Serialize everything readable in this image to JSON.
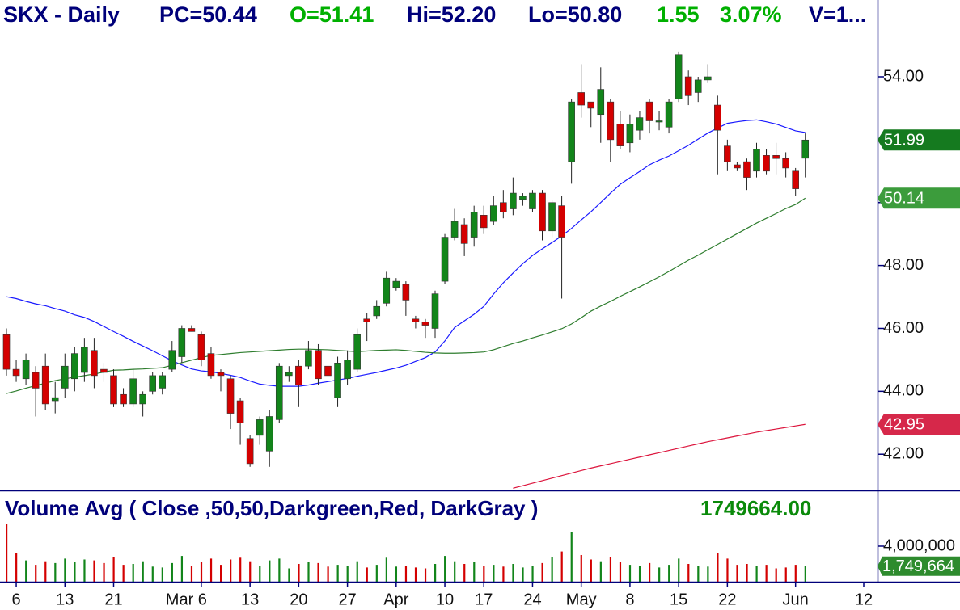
{
  "chart_data": {
    "type": "candlestick",
    "title": "SKX - Daily",
    "header": [
      "PC=50.44",
      "O=51.41",
      "Hi=52.20",
      "Lo=50.80",
      "1.55",
      "3.07%",
      "V=1..."
    ],
    "categories": [
      null,
      "6",
      null,
      null,
      null,
      null,
      "13",
      null,
      null,
      null,
      null,
      "21",
      null,
      null,
      null,
      null,
      null,
      null,
      null,
      null,
      "Mar 6",
      null,
      null,
      null,
      null,
      "13",
      null,
      null,
      null,
      null,
      "20",
      null,
      null,
      null,
      null,
      "27",
      null,
      null,
      null,
      null,
      "Apr",
      null,
      null,
      null,
      null,
      "10",
      null,
      null,
      null,
      "17",
      null,
      null,
      null,
      null,
      "24",
      null,
      null,
      null,
      null,
      "May",
      null,
      null,
      null,
      null,
      "8",
      null,
      null,
      null,
      null,
      "15",
      null,
      null,
      null,
      null,
      "22",
      null,
      null,
      null,
      null,
      null,
      null,
      "Jun",
      null,
      null,
      null,
      null,
      null,
      null,
      "12"
    ],
    "open": [
      45.8,
      44.7,
      44.4,
      44.6,
      44.8,
      43.7,
      44.1,
      44.4,
      44.6,
      45.3,
      44.7,
      44.5,
      43.9,
      43.6,
      43.6,
      44.0,
      44.1,
      44.7,
      45.1,
      46.0,
      45.8,
      45.2,
      44.6,
      44.4,
      43.7,
      42.5,
      42.6,
      42.1,
      43.1,
      44.5,
      44.8,
      44.8,
      45.3,
      44.8,
      43.8,
      44.4,
      44.7,
      46.3,
      46.4,
      46.8,
      47.3,
      47.4,
      46.3,
      46.2,
      46.0,
      47.5,
      48.9,
      49.3,
      48.9,
      49.6,
      49.4,
      50.0,
      49.8,
      50.1,
      49.8,
      50.3,
      49.1,
      49.9,
      51.3,
      53.5,
      53.2,
      52.8,
      53.2,
      52.5,
      51.9,
      52.3,
      53.2,
      52.6,
      52.4,
      53.3,
      54.0,
      53.5,
      53.9,
      53.1,
      51.8,
      51.2,
      51.3,
      51.0,
      51.5,
      51.5,
      51.4,
      51.0,
      51.41,
      null,
      null,
      null,
      null,
      null,
      null
    ],
    "high": [
      46.0,
      45.0,
      45.2,
      44.8,
      45.2,
      44.3,
      45.2,
      45.4,
      45.7,
      45.7,
      44.9,
      44.7,
      44.1,
      44.7,
      44.0,
      44.6,
      44.6,
      45.6,
      46.1,
      46.1,
      45.9,
      45.4,
      44.7,
      44.5,
      43.8,
      42.6,
      43.2,
      43.4,
      44.9,
      44.8,
      45.0,
      45.6,
      45.5,
      45.3,
      45.1,
      45.3,
      46.0,
      46.5,
      46.9,
      47.8,
      47.6,
      47.5,
      46.4,
      46.3,
      47.2,
      49.0,
      49.8,
      49.5,
      49.9,
      49.9,
      50.2,
      50.4,
      50.8,
      50.3,
      50.4,
      50.4,
      50.1,
      50.2,
      53.3,
      54.4,
      53.2,
      54.3,
      53.3,
      52.9,
      52.8,
      52.9,
      53.3,
      52.9,
      53.3,
      54.8,
      54.2,
      54.0,
      54.4,
      53.4,
      52.0,
      51.3,
      51.4,
      51.9,
      51.7,
      51.9,
      51.6,
      51.1,
      52.2,
      null,
      null,
      null,
      null,
      null,
      null
    ],
    "low": [
      44.5,
      44.3,
      44.2,
      43.2,
      43.4,
      43.3,
      43.8,
      44.0,
      44.3,
      44.1,
      44.3,
      43.5,
      43.5,
      43.5,
      43.2,
      43.9,
      43.9,
      44.6,
      44.9,
      45.9,
      44.8,
      44.4,
      44.0,
      42.8,
      42.3,
      41.6,
      42.3,
      41.6,
      43.0,
      44.3,
      43.5,
      44.7,
      44.2,
      44.0,
      43.5,
      44.2,
      44.6,
      45.6,
      46.3,
      46.7,
      47.2,
      46.4,
      46.0,
      45.7,
      45.7,
      47.4,
      48.8,
      48.3,
      48.6,
      49.0,
      49.3,
      49.5,
      49.6,
      49.9,
      49.7,
      48.8,
      48.9,
      46.95,
      50.6,
      52.7,
      52.4,
      51.9,
      51.3,
      51.7,
      51.6,
      52.0,
      52.2,
      52.3,
      52.2,
      53.2,
      53.1,
      53.2,
      53.8,
      50.9,
      51.0,
      51.0,
      50.4,
      50.8,
      50.9,
      50.9,
      50.8,
      50.2,
      50.8,
      null,
      null,
      null,
      null,
      null,
      null
    ],
    "close": [
      44.7,
      44.5,
      45.0,
      44.1,
      43.6,
      43.8,
      44.8,
      45.2,
      45.4,
      44.5,
      44.6,
      43.6,
      43.6,
      44.4,
      43.9,
      44.5,
      44.5,
      45.3,
      46.0,
      45.9,
      45.0,
      44.5,
      44.5,
      43.3,
      43.0,
      41.7,
      43.1,
      43.2,
      44.8,
      44.6,
      44.2,
      45.3,
      44.4,
      44.5,
      44.9,
      45.0,
      45.8,
      46.2,
      46.7,
      47.6,
      47.5,
      46.9,
      46.2,
      46.1,
      47.1,
      48.9,
      49.4,
      48.7,
      49.7,
      49.2,
      49.9,
      49.7,
      50.3,
      50.2,
      50.3,
      49.1,
      50.0,
      48.9,
      53.2,
      53.1,
      53.0,
      53.6,
      52.0,
      51.8,
      52.5,
      52.7,
      52.6,
      52.6,
      53.2,
      54.7,
      53.4,
      53.9,
      54.0,
      52.3,
      51.3,
      51.1,
      50.8,
      51.7,
      51.0,
      51.4,
      51.1,
      50.44,
      51.99,
      null,
      null,
      null,
      null,
      null,
      null
    ],
    "up_color": "#12851a",
    "down_color": "#d40000",
    "series": [
      {
        "color": "#1a1aff",
        "values": [
          47.01,
          46.95,
          46.86,
          46.78,
          46.72,
          46.63,
          46.55,
          46.43,
          46.35,
          46.22,
          46.06,
          45.9,
          45.75,
          45.59,
          45.44,
          45.29,
          45.13,
          44.97,
          44.84,
          44.71,
          44.65,
          44.62,
          44.57,
          44.51,
          44.44,
          44.33,
          44.23,
          44.19,
          44.16,
          44.16,
          44.16,
          44.2,
          44.26,
          44.31,
          44.36,
          44.41,
          44.48,
          44.54,
          44.6,
          44.67,
          44.74,
          44.83,
          44.95,
          45.07,
          45.25,
          45.6,
          46.03,
          46.24,
          46.45,
          46.7,
          47.09,
          47.45,
          47.76,
          48.06,
          48.32,
          48.53,
          48.73,
          48.94,
          49.18,
          49.45,
          49.71,
          50.0,
          50.3,
          50.58,
          50.79,
          50.99,
          51.2,
          51.35,
          51.48,
          51.65,
          51.82,
          52.02,
          52.21,
          52.37,
          52.52,
          52.57,
          52.61,
          52.63,
          52.57,
          52.5,
          52.39,
          52.28,
          52.23,
          null,
          null,
          null,
          null,
          null,
          null
        ]
      },
      {
        "color": "#2e7d2e",
        "values": [
          43.93,
          44.01,
          44.1,
          44.18,
          44.26,
          44.34,
          44.4,
          44.45,
          44.5,
          44.55,
          44.61,
          44.67,
          44.68,
          44.7,
          44.71,
          44.73,
          44.75,
          44.83,
          44.91,
          44.99,
          45.07,
          45.14,
          45.17,
          45.2,
          45.23,
          45.25,
          45.27,
          45.29,
          45.31,
          45.33,
          45.34,
          45.34,
          45.33,
          45.32,
          45.3,
          45.28,
          45.26,
          45.28,
          45.3,
          45.31,
          45.32,
          45.3,
          45.27,
          45.24,
          45.22,
          45.21,
          45.21,
          45.22,
          45.23,
          45.25,
          45.32,
          45.42,
          45.52,
          45.6,
          45.7,
          45.79,
          45.89,
          45.99,
          46.14,
          46.34,
          46.55,
          46.71,
          46.86,
          47.02,
          47.17,
          47.32,
          47.48,
          47.64,
          47.81,
          47.99,
          48.17,
          48.33,
          48.5,
          48.67,
          48.84,
          49.01,
          49.18,
          49.35,
          49.5,
          49.65,
          49.81,
          49.94,
          50.14,
          null,
          null,
          null,
          null,
          null,
          null
        ]
      },
      {
        "color": "#dc143c",
        "values": [
          null,
          null,
          null,
          null,
          null,
          null,
          null,
          null,
          null,
          null,
          null,
          null,
          null,
          null,
          null,
          null,
          null,
          null,
          null,
          null,
          null,
          null,
          null,
          null,
          null,
          null,
          null,
          null,
          null,
          null,
          null,
          null,
          null,
          null,
          null,
          null,
          null,
          null,
          null,
          null,
          null,
          null,
          null,
          null,
          null,
          null,
          null,
          null,
          null,
          null,
          null,
          null,
          40.92,
          41.0,
          41.08,
          41.16,
          41.24,
          41.32,
          41.4,
          41.48,
          41.56,
          41.63,
          41.7,
          41.77,
          41.84,
          41.91,
          41.98,
          42.05,
          42.12,
          42.19,
          42.26,
          42.33,
          42.4,
          42.46,
          42.52,
          42.58,
          42.64,
          42.7,
          42.75,
          42.8,
          42.85,
          42.9,
          42.95,
          null,
          null,
          null,
          null,
          null,
          null
        ]
      }
    ],
    "ylim": [
      40.85,
      56.44
    ],
    "yticks": [
      {
        "value": 42,
        "label": "42.00"
      },
      {
        "value": 44,
        "label": "44.00"
      },
      {
        "value": 46,
        "label": "46.00"
      },
      {
        "value": 48,
        "label": "48.00"
      },
      {
        "value": 50,
        "label": "50.00"
      },
      {
        "value": 52,
        "label": "52.00"
      },
      {
        "value": 54,
        "label": "54.00"
      }
    ],
    "price_tags": [
      51.99,
      50.14,
      42.95
    ],
    "price_tag_colors": [
      "#157a1f",
      "#3c9c3c",
      "#d6284a"
    ],
    "volume": {
      "title": "Volume Avg ( Close ,50,50,Darkgreen,Red, DarkGray )",
      "value_text": "1749664.00",
      "values": [
        6500000,
        3200000,
        2400000,
        1900000,
        2300000,
        2100000,
        2600000,
        2200000,
        2500000,
        2400000,
        2100000,
        2800000,
        1900000,
        2000000,
        2300000,
        1700000,
        1600000,
        2100000,
        2900000,
        1800000,
        2200000,
        2600000,
        1900000,
        2500000,
        2700000,
        2300000,
        1800000,
        2400000,
        2600000,
        1500000,
        2000000,
        2200000,
        2100000,
        1700000,
        1900000,
        1800000,
        2300000,
        1600000,
        1900000,
        2700000,
        1700000,
        1800000,
        1600000,
        1500000,
        2000000,
        2900000,
        2300000,
        2000000,
        2200000,
        1800000,
        1900000,
        1700000,
        2000000,
        1600000,
        1800000,
        2100000,
        2800000,
        3400000,
        5600000,
        3000000,
        2500000,
        2300000,
        2800000,
        2200000,
        1900000,
        1800000,
        2100000,
        1600000,
        1900000,
        2600000,
        2000000,
        1800000,
        1700000,
        3200000,
        2600000,
        1900000,
        2000000,
        1800000,
        1900000,
        1500000,
        1600000,
        1900000,
        1749664,
        null,
        null,
        null,
        null,
        null,
        null
      ],
      "ylim": [
        0,
        10270000
      ],
      "yticks": [
        {
          "value": 4000000,
          "label": "4,000,000"
        }
      ],
      "tag": {
        "value": 1749664,
        "label": "1,749,664"
      },
      "tag_color": "#2e8b2e"
    }
  }
}
